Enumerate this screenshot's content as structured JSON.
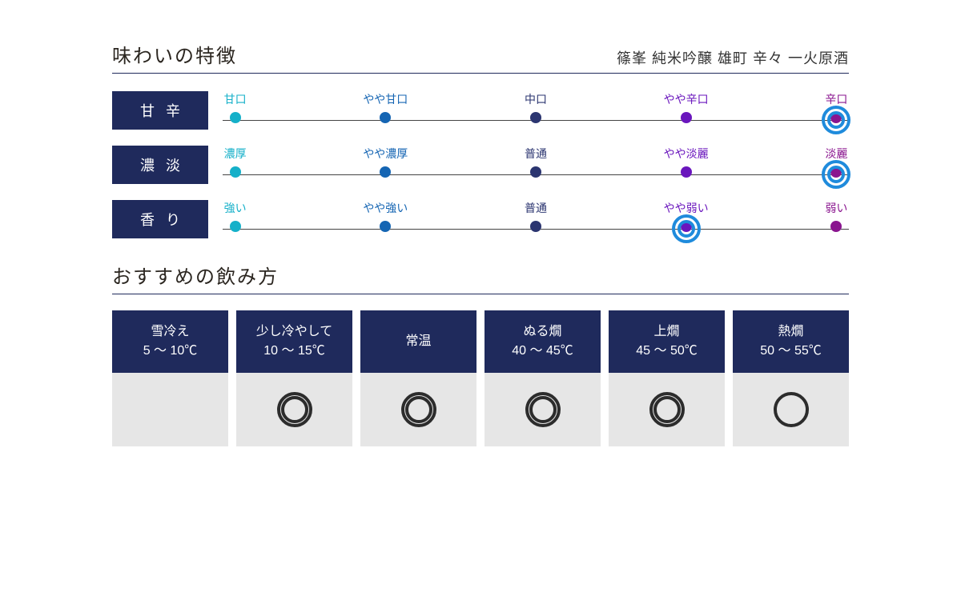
{
  "colors": {
    "navy": "#1f2a5c",
    "ring": "#1f8bdc",
    "grey_cell": "#e6e6e6",
    "mark": "#2c2c2c"
  },
  "taste": {
    "title": "味わいの特徴",
    "subtitle": "篠峯 純米吟醸 雄町 辛々 一火原酒",
    "stop_positions_pct": [
      2,
      26,
      50,
      74,
      98
    ],
    "stop_colors": [
      "#15b0c9",
      "#1565b3",
      "#2b3570",
      "#6a16bd",
      "#8a158f"
    ],
    "scales": [
      {
        "label": "甘辛",
        "stops": [
          "甘口",
          "やや甘口",
          "中口",
          "やや辛口",
          "辛口"
        ],
        "selected_index": 4
      },
      {
        "label": "濃淡",
        "stops": [
          "濃厚",
          "やや濃厚",
          "普通",
          "やや淡麗",
          "淡麗"
        ],
        "selected_index": 4
      },
      {
        "label": "香り",
        "stops": [
          "強い",
          "やや強い",
          "普通",
          "やや弱い",
          "弱い"
        ],
        "selected_index": 3
      }
    ]
  },
  "drink": {
    "title": "おすすめの飲み方",
    "columns": [
      {
        "name": "雪冷え",
        "temp": "5 〜 10℃",
        "mark": "none"
      },
      {
        "name": "少し冷やして",
        "temp": "10 〜 15℃",
        "mark": "double"
      },
      {
        "name": "常温",
        "temp": "",
        "mark": "double"
      },
      {
        "name": "ぬる燗",
        "temp": "40 〜 45℃",
        "mark": "double"
      },
      {
        "name": "上燗",
        "temp": "45 〜 50℃",
        "mark": "double"
      },
      {
        "name": "熱燗",
        "temp": "50 〜 55℃",
        "mark": "single"
      }
    ]
  }
}
